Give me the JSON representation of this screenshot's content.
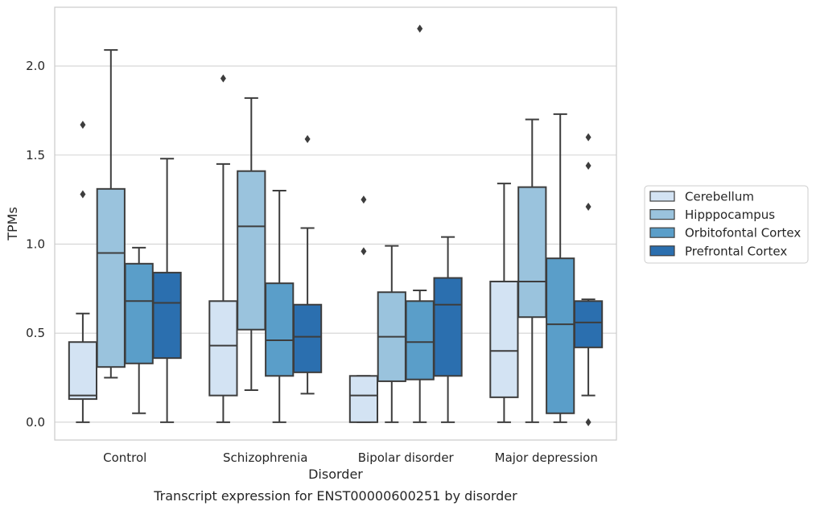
{
  "chart_data": {
    "type": "box",
    "title": "",
    "caption": "Transcript expression for ENST00000600251 by disorder",
    "xlabel": "Disorder",
    "ylabel": "TPMs",
    "ylim": [
      -0.1,
      2.33
    ],
    "yticks": [
      0.0,
      0.5,
      1.0,
      1.5,
      2.0
    ],
    "ytick_labels": [
      "0.0",
      "0.5",
      "1.0",
      "1.5",
      "2.0"
    ],
    "grid": "horizontal",
    "legend_position": "right",
    "categories": [
      "Control",
      "Schizophrenia",
      "Bipolar disorder",
      "Major depression"
    ],
    "series": [
      {
        "name": "Cerebellum",
        "color": "#d3e3f3",
        "boxes": [
          {
            "whisker_low": 0.0,
            "q1": 0.13,
            "median": 0.15,
            "q3": 0.45,
            "whisker_high": 0.61,
            "outliers": [
              1.28,
              1.67
            ]
          },
          {
            "whisker_low": 0.0,
            "q1": 0.15,
            "median": 0.43,
            "q3": 0.68,
            "whisker_high": 1.45,
            "outliers": [
              1.93
            ]
          },
          {
            "whisker_low": 0.0,
            "q1": 0.0,
            "median": 0.15,
            "q3": 0.26,
            "whisker_high": 0.26,
            "outliers": [
              0.96,
              1.25
            ]
          },
          {
            "whisker_low": 0.0,
            "q1": 0.14,
            "median": 0.4,
            "q3": 0.79,
            "whisker_high": 1.34,
            "outliers": []
          }
        ]
      },
      {
        "name": "Hipppocampus",
        "color": "#9ac3dd",
        "boxes": [
          {
            "whisker_low": 0.25,
            "q1": 0.31,
            "median": 0.95,
            "q3": 1.31,
            "whisker_high": 2.09,
            "outliers": []
          },
          {
            "whisker_low": 0.18,
            "q1": 0.52,
            "median": 1.1,
            "q3": 1.41,
            "whisker_high": 1.82,
            "outliers": []
          },
          {
            "whisker_low": 0.0,
            "q1": 0.23,
            "median": 0.48,
            "q3": 0.73,
            "whisker_high": 0.99,
            "outliers": []
          },
          {
            "whisker_low": 0.0,
            "q1": 0.59,
            "median": 0.79,
            "q3": 1.32,
            "whisker_high": 1.7,
            "outliers": []
          }
        ]
      },
      {
        "name": "Orbitofontal Cortex",
        "color": "#5a9ec9",
        "boxes": [
          {
            "whisker_low": 0.05,
            "q1": 0.33,
            "median": 0.68,
            "q3": 0.89,
            "whisker_high": 0.98,
            "outliers": []
          },
          {
            "whisker_low": 0.0,
            "q1": 0.26,
            "median": 0.46,
            "q3": 0.78,
            "whisker_high": 1.3,
            "outliers": []
          },
          {
            "whisker_low": 0.0,
            "q1": 0.24,
            "median": 0.45,
            "q3": 0.68,
            "whisker_high": 0.74,
            "outliers": [
              2.21
            ]
          },
          {
            "whisker_low": 0.0,
            "q1": 0.05,
            "median": 0.55,
            "q3": 0.92,
            "whisker_high": 1.73,
            "outliers": []
          }
        ]
      },
      {
        "name": "Prefrontal Cortex",
        "color": "#2b6faf",
        "boxes": [
          {
            "whisker_low": 0.0,
            "q1": 0.36,
            "median": 0.67,
            "q3": 0.84,
            "whisker_high": 1.48,
            "outliers": []
          },
          {
            "whisker_low": 0.16,
            "q1": 0.28,
            "median": 0.48,
            "q3": 0.66,
            "whisker_high": 1.09,
            "outliers": [
              1.59
            ]
          },
          {
            "whisker_low": 0.0,
            "q1": 0.26,
            "median": 0.66,
            "q3": 0.81,
            "whisker_high": 1.04,
            "outliers": []
          },
          {
            "whisker_low": 0.15,
            "q1": 0.42,
            "median": 0.56,
            "q3": 0.68,
            "whisker_high": 0.69,
            "outliers": [
              0.0,
              1.21,
              1.44,
              1.6
            ]
          }
        ]
      }
    ]
  }
}
